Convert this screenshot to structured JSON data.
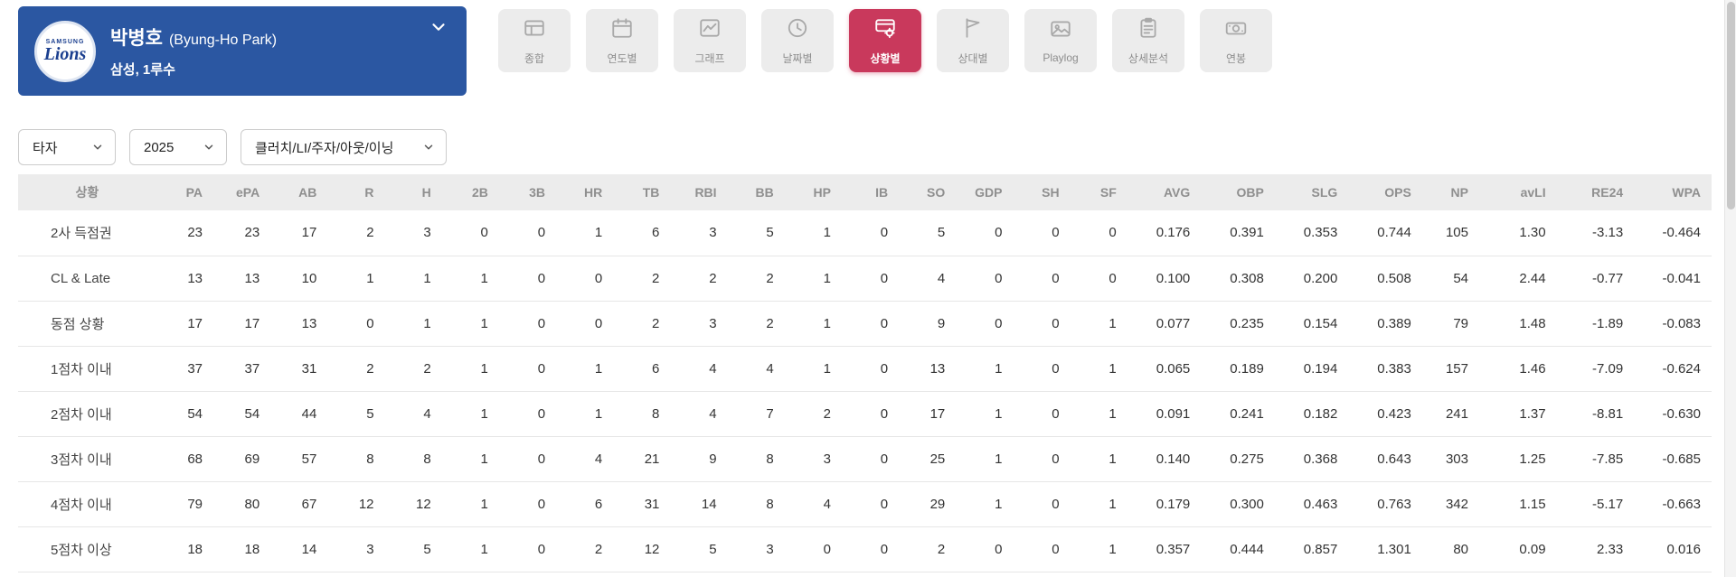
{
  "player": {
    "name_kr": "박병호",
    "name_en": "(Byung-Ho Park)",
    "team_position": "삼성, 1루수",
    "logo": {
      "top": "SAMSUNG",
      "main": "Lions"
    }
  },
  "tabs": [
    {
      "label": "종합"
    },
    {
      "label": "연도별"
    },
    {
      "label": "그래프"
    },
    {
      "label": "날짜별"
    },
    {
      "label": "상황별"
    },
    {
      "label": "상대별"
    },
    {
      "label": "Playlog"
    },
    {
      "label": "상세분석"
    },
    {
      "label": "연봉"
    }
  ],
  "filters": {
    "position": "타자",
    "year": "2025",
    "situation_type": "클러치/LI/주자/아웃/이닝"
  },
  "table": {
    "columns": [
      "상황",
      "PA",
      "ePA",
      "AB",
      "R",
      "H",
      "2B",
      "3B",
      "HR",
      "TB",
      "RBI",
      "BB",
      "HP",
      "IB",
      "SO",
      "GDP",
      "SH",
      "SF",
      "AVG",
      "OBP",
      "SLG",
      "OPS",
      "NP",
      "avLI",
      "RE24",
      "WPA"
    ],
    "rows": [
      [
        "2사 득점권",
        "23",
        "23",
        "17",
        "2",
        "3",
        "0",
        "0",
        "1",
        "6",
        "3",
        "5",
        "1",
        "0",
        "5",
        "0",
        "0",
        "0",
        "0.176",
        "0.391",
        "0.353",
        "0.744",
        "105",
        "1.30",
        "-3.13",
        "-0.464"
      ],
      [
        "CL & Late",
        "13",
        "13",
        "10",
        "1",
        "1",
        "1",
        "0",
        "0",
        "2",
        "2",
        "2",
        "1",
        "0",
        "4",
        "0",
        "0",
        "0",
        "0.100",
        "0.308",
        "0.200",
        "0.508",
        "54",
        "2.44",
        "-0.77",
        "-0.041"
      ],
      [
        "동점 상황",
        "17",
        "17",
        "13",
        "0",
        "1",
        "1",
        "0",
        "0",
        "2",
        "3",
        "2",
        "1",
        "0",
        "9",
        "0",
        "0",
        "1",
        "0.077",
        "0.235",
        "0.154",
        "0.389",
        "79",
        "1.48",
        "-1.89",
        "-0.083"
      ],
      [
        "1점차 이내",
        "37",
        "37",
        "31",
        "2",
        "2",
        "1",
        "0",
        "1",
        "6",
        "4",
        "4",
        "1",
        "0",
        "13",
        "1",
        "0",
        "1",
        "0.065",
        "0.189",
        "0.194",
        "0.383",
        "157",
        "1.46",
        "-7.09",
        "-0.624"
      ],
      [
        "2점차 이내",
        "54",
        "54",
        "44",
        "5",
        "4",
        "1",
        "0",
        "1",
        "8",
        "4",
        "7",
        "2",
        "0",
        "17",
        "1",
        "0",
        "1",
        "0.091",
        "0.241",
        "0.182",
        "0.423",
        "241",
        "1.37",
        "-8.81",
        "-0.630"
      ],
      [
        "3점차 이내",
        "68",
        "69",
        "57",
        "8",
        "8",
        "1",
        "0",
        "4",
        "21",
        "9",
        "8",
        "3",
        "0",
        "25",
        "1",
        "0",
        "1",
        "0.140",
        "0.275",
        "0.368",
        "0.643",
        "303",
        "1.25",
        "-7.85",
        "-0.685"
      ],
      [
        "4점차 이내",
        "79",
        "80",
        "67",
        "12",
        "12",
        "1",
        "0",
        "6",
        "31",
        "14",
        "8",
        "4",
        "0",
        "29",
        "1",
        "0",
        "1",
        "0.179",
        "0.300",
        "0.463",
        "0.763",
        "342",
        "1.15",
        "-5.17",
        "-0.663"
      ],
      [
        "5점차 이상",
        "18",
        "18",
        "14",
        "3",
        "5",
        "1",
        "0",
        "2",
        "12",
        "5",
        "3",
        "0",
        "0",
        "2",
        "0",
        "0",
        "1",
        "0.357",
        "0.444",
        "0.857",
        "1.301",
        "80",
        "0.09",
        "2.33",
        "0.016"
      ]
    ]
  }
}
